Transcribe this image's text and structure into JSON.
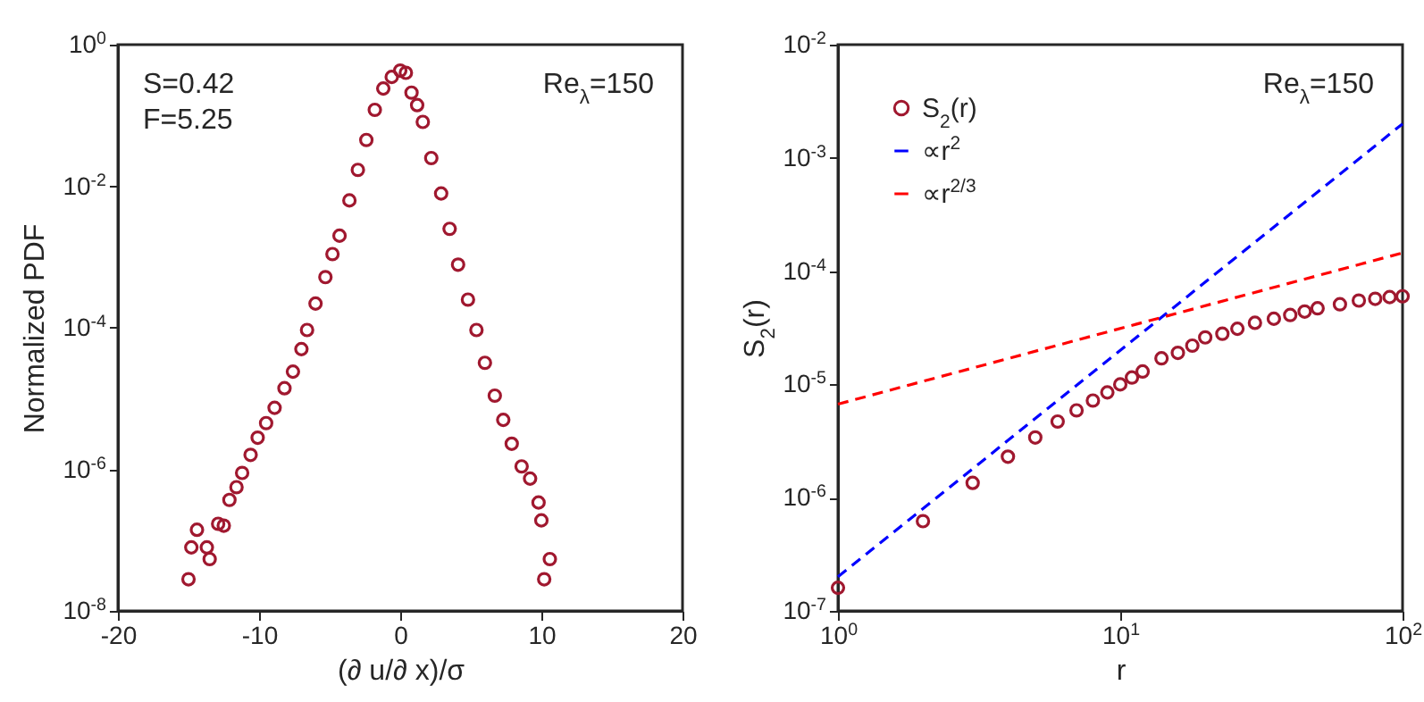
{
  "chart_data": [
    {
      "type": "scatter",
      "xlabel": "(∂ u/∂ x)/σ",
      "ylabel": "Normalized PDF",
      "log": "y",
      "marker": "circle",
      "color": "#a0182f",
      "annotations": [
        "S=0.42",
        "F=5.25",
        "Re$_{λ}$=150"
      ],
      "x": [
        -15.0,
        -14.8,
        -14.4,
        -13.7,
        -13.5,
        -12.9,
        -12.5,
        -12.1,
        -11.6,
        -11.2,
        -10.6,
        -10.1,
        -9.5,
        -8.9,
        -8.2,
        -7.6,
        -7.0,
        -6.6,
        -6.0,
        -5.3,
        -4.8,
        -4.3,
        -3.6,
        -3.0,
        -2.4,
        -1.8,
        -1.2,
        -0.6,
        0,
        0.4,
        0.8,
        1.2,
        1.6,
        2.2,
        2.9,
        3.5,
        4.1,
        4.8,
        5.4,
        6.0,
        6.7,
        7.3,
        7.9,
        8.6,
        9.2,
        9.8,
        10.0,
        10.6,
        10.2
      ],
      "values": [
        2.8e-08,
        7.9e-08,
        1.4e-07,
        7.9e-08,
        5.4e-08,
        1.7e-07,
        1.6e-07,
        3.7e-07,
        5.6e-07,
        8.9e-07,
        1.6e-06,
        2.8e-06,
        4.5e-06,
        7.4e-06,
        1.4e-05,
        2.4e-05,
        5e-05,
        9.3e-05,
        0.00022,
        0.00052,
        0.0011,
        0.002,
        0.0063,
        0.017,
        0.045,
        0.12,
        0.24,
        0.35,
        0.43,
        0.4,
        0.21,
        0.14,
        0.081,
        0.025,
        0.0079,
        0.0025,
        0.00078,
        0.00025,
        9.3e-05,
        3.2e-05,
        1.1e-05,
        5e-06,
        2.3e-06,
        1.1e-06,
        7.4e-07,
        3.4e-07,
        1.9e-07,
        5.4e-08,
        2.8e-08
      ],
      "xlim": [
        -20,
        20
      ],
      "xticks": [
        -20,
        -10,
        0,
        10,
        20
      ],
      "ylim": [
        1e-08,
        1
      ],
      "yticks": [
        {
          "value": 1e-08,
          "label": "10$^{-8}$"
        },
        {
          "value": 1e-06,
          "label": "10$^{-6}$"
        },
        {
          "value": 0.0001,
          "label": "10$^{-4}$"
        },
        {
          "value": 0.01,
          "label": "10$^{-2}$"
        },
        {
          "value": 1,
          "label": "10$^{0}$"
        }
      ]
    },
    {
      "type": "scatter",
      "xlabel": "r",
      "ylabel": "S$_{2}$(r)",
      "log": "xy",
      "legend": "top left",
      "annotations": [
        "Re$_{λ}$=150"
      ],
      "series": [
        {
          "name": "S$_{2}$(r)",
          "marker": "circle",
          "color": "#a0182f",
          "x": [
            1,
            2,
            3,
            4,
            5,
            6,
            7,
            8,
            9,
            10,
            11,
            12,
            14,
            16,
            18,
            20,
            23,
            26,
            30,
            35,
            40,
            45,
            50,
            60,
            70,
            80,
            90,
            100
          ],
          "values": [
            1.6e-07,
            6.2e-07,
            1.35e-06,
            2.3e-06,
            3.4e-06,
            4.7e-06,
            5.9e-06,
            7.2e-06,
            8.5e-06,
            1e-05,
            1.15e-05,
            1.3e-05,
            1.7e-05,
            1.9e-05,
            2.2e-05,
            2.6e-05,
            2.8e-05,
            3.1e-05,
            3.5e-05,
            3.8e-05,
            4.1e-05,
            4.4e-05,
            4.7e-05,
            5.1e-05,
            5.5e-05,
            5.7e-05,
            5.9e-05,
            6e-05
          ]
        },
        {
          "name": "∝r$^{2}$",
          "type": "line",
          "line_style": "dashed",
          "color": "#0000ff",
          "x": [
            1,
            100
          ],
          "values": [
            2e-07,
            0.002
          ]
        },
        {
          "name": "∝r$^{2/3}$",
          "type": "line",
          "line_style": "dashed",
          "color": "#ff0000",
          "x": [
            1,
            100
          ],
          "values": [
            6.7e-06,
            0.000145
          ]
        }
      ],
      "xlim": [
        1,
        100
      ],
      "xticks": [
        {
          "value": 1,
          "label": "10$^{0}$"
        },
        {
          "value": 10,
          "label": "10$^{1}$"
        },
        {
          "value": 100,
          "label": "10$^{2}$"
        }
      ],
      "ylim": [
        1e-07,
        0.01
      ],
      "yticks": [
        {
          "value": 1e-07,
          "label": "10$^{-7}$"
        },
        {
          "value": 1e-06,
          "label": "10$^{-6}$"
        },
        {
          "value": 1e-05,
          "label": "10$^{-5}$"
        },
        {
          "value": 0.0001,
          "label": "10$^{-4}$"
        },
        {
          "value": 0.001,
          "label": "10$^{-3}$"
        },
        {
          "value": 0.01,
          "label": "10$^{-2}$"
        }
      ]
    }
  ]
}
